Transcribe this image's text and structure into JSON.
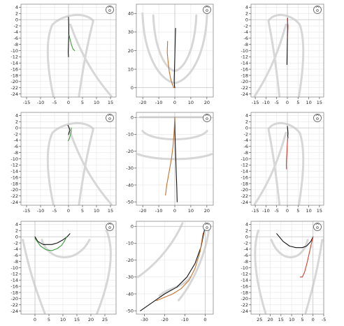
{
  "colors": {
    "black": "#111111",
    "green": "#3e9a3e",
    "red": "#d63b2f",
    "orange": "#c8702a"
  },
  "chart_data": [
    {
      "type": "line",
      "view": "sagittal-right",
      "xlim": [
        -17,
        17
      ],
      "ylim": [
        -25,
        5
      ],
      "xticks": [
        -15,
        -10,
        -5,
        0,
        5,
        10,
        15
      ],
      "yticks": [
        4,
        2,
        0,
        -2,
        -4,
        -6,
        -8,
        -10,
        -12,
        -14,
        -16,
        -18,
        -20,
        -22,
        -24
      ],
      "series": [
        {
          "color": "black",
          "x": [
            0,
            0.1,
            0.1,
            0.0,
            -0.1,
            0.0
          ],
          "y": [
            0.8,
            -2,
            -5,
            -8,
            -10.5,
            -12
          ]
        },
        {
          "color": "green",
          "x": [
            0.2,
            0.6,
            1.0,
            1.6,
            2.2
          ],
          "y": [
            -5,
            -6.5,
            -8,
            -9.5,
            -10
          ]
        }
      ]
    },
    {
      "type": "line",
      "view": "occlusal",
      "xlim": [
        -24,
        24
      ],
      "ylim": [
        -5,
        45
      ],
      "xticks": [
        -20,
        -10,
        0,
        10,
        20
      ],
      "yticks": [
        0,
        10,
        20,
        30,
        40
      ],
      "series": [
        {
          "color": "black",
          "x": [
            0.5,
            0.2,
            0.0,
            -0.2,
            -0.4,
            -0.2,
            0.0
          ],
          "y": [
            32,
            24,
            16,
            9,
            4,
            1,
            0
          ]
        },
        {
          "color": "orange",
          "x": [
            -4.5,
            -4.7,
            -4.2,
            -3.5,
            -2.6,
            -1.6,
            -0.6
          ],
          "y": [
            25,
            19,
            14,
            9,
            5,
            2,
            0
          ]
        }
      ]
    },
    {
      "type": "line",
      "view": "sagittal-left",
      "xlim": [
        -17,
        17
      ],
      "ylim": [
        -25,
        5
      ],
      "xticks": [
        -15,
        -10,
        -5,
        0,
        5,
        10,
        15
      ],
      "yticks": [
        4,
        2,
        0,
        -2,
        -4,
        -6,
        -8,
        -10,
        -12,
        -14,
        -16,
        -18,
        -20,
        -22,
        -24
      ],
      "series": [
        {
          "color": "black",
          "x": [
            0.1,
            0.1,
            0.0,
            -0.1,
            -0.2
          ],
          "y": [
            0.5,
            -3,
            -7,
            -11,
            -14.5
          ]
        },
        {
          "color": "red",
          "x": [
            0.0,
            0.3,
            0.2,
            0.1
          ],
          "y": [
            0.3,
            -2,
            -4,
            -6
          ]
        }
      ]
    },
    {
      "type": "line",
      "view": "sagittal-right",
      "xlim": [
        -17,
        17
      ],
      "ylim": [
        -25,
        5
      ],
      "xticks": [
        -15,
        -10,
        -5,
        0,
        5,
        10,
        15
      ],
      "yticks": [
        4,
        2,
        0,
        -2,
        -4,
        -6,
        -8,
        -10,
        -12,
        -14,
        -16,
        -18,
        -20,
        -22,
        -24
      ],
      "series": [
        {
          "color": "black",
          "x": [
            -0.2,
            0.2,
            0.5,
            0.2,
            0.0
          ],
          "y": [
            0.8,
            0.1,
            -0.8,
            -1.5,
            -2.2
          ]
        },
        {
          "color": "green",
          "x": [
            1.0,
            0.9,
            0.6,
            0.3,
            -0.1
          ],
          "y": [
            0,
            -1.5,
            -2.5,
            -3.5,
            -4.2
          ]
        }
      ]
    },
    {
      "type": "line",
      "view": "frontal",
      "xlim": [
        -24,
        24
      ],
      "ylim": [
        -52,
        3
      ],
      "xticks": [
        -20,
        -10,
        0,
        10,
        20
      ],
      "yticks": [
        0,
        -10,
        -20,
        -30,
        -40,
        -50
      ],
      "series": [
        {
          "color": "black",
          "x": [
            0.0,
            0.1,
            0.3,
            0.6,
            0.9,
            1.2,
            1.5
          ],
          "y": [
            0,
            -8,
            -16,
            -24,
            -33,
            -41,
            -50
          ]
        },
        {
          "color": "orange",
          "x": [
            0.0,
            -0.4,
            -1.0,
            -2.0,
            -3.5,
            -5.0,
            -5.8
          ],
          "y": [
            0,
            -8,
            -16,
            -24,
            -32,
            -40,
            -46
          ]
        }
      ]
    },
    {
      "type": "line",
      "view": "sagittal-left",
      "xlim": [
        -17,
        17
      ],
      "ylim": [
        -25,
        5
      ],
      "xticks": [
        -15,
        -10,
        -5,
        0,
        5,
        10,
        15
      ],
      "yticks": [
        4,
        2,
        0,
        -2,
        -4,
        -6,
        -8,
        -10,
        -12,
        -14,
        -16,
        -18,
        -20,
        -22,
        -24
      ],
      "series": [
        {
          "color": "black",
          "x": [
            0.0,
            0.2,
            0.3,
            0.2,
            0.3
          ],
          "y": [
            0.5,
            -0.8,
            -1.8,
            -2.5,
            -3.2
          ]
        },
        {
          "color": "red",
          "x": [
            0.2,
            0.1,
            -0.1,
            -0.2,
            -0.4,
            -0.5,
            -0.4
          ],
          "y": [
            -3,
            -4,
            -6,
            -8,
            -10,
            -12,
            -13.3
          ]
        }
      ]
    },
    {
      "type": "line",
      "view": "horizontal",
      "xlim": [
        -5,
        29
      ],
      "ylim": [
        -25,
        5
      ],
      "xticks": [
        0,
        5,
        10,
        15,
        20,
        25
      ],
      "yticks": [
        4,
        2,
        0,
        -2,
        -4,
        -6,
        -8,
        -10,
        -12,
        -14,
        -16,
        -18,
        -20,
        -22,
        -24
      ],
      "series": [
        {
          "color": "black",
          "x": [
            0,
            1,
            3,
            6,
            8,
            10,
            11.5,
            12.5
          ],
          "y": [
            0,
            -1.5,
            -2.5,
            -2.5,
            -2.0,
            -1.0,
            0,
            1.0
          ]
        },
        {
          "color": "green",
          "x": [
            0,
            2,
            4,
            6,
            8,
            9.5,
            10.5,
            11.2
          ],
          "y": [
            -0.5,
            -3,
            -4.2,
            -4.5,
            -3.8,
            -2.8,
            -1.5,
            -0.2
          ]
        }
      ]
    },
    {
      "type": "line",
      "view": "sagittal-profile",
      "xlim": [
        -34,
        4
      ],
      "ylim": [
        -52,
        3
      ],
      "xticks": [
        -30,
        -20,
        -10,
        0
      ],
      "yticks": [
        0,
        -10,
        -20,
        -30,
        -40,
        -50
      ],
      "series": [
        {
          "color": "black",
          "x": [
            0,
            -2,
            -5,
            -9,
            -14,
            -20,
            -26,
            -32
          ],
          "y": [
            0,
            -12,
            -22,
            -30,
            -36,
            -40,
            -45,
            -50
          ]
        },
        {
          "color": "orange",
          "x": [
            -1,
            -2.5,
            -5,
            -8,
            -12,
            -16,
            -20,
            -24
          ],
          "y": [
            -4,
            -15,
            -25,
            -32,
            -37,
            -40,
            -42,
            -44
          ]
        }
      ]
    },
    {
      "type": "line",
      "view": "horizontal-mirrored",
      "xlim": [
        29,
        -5
      ],
      "ylim": [
        -25,
        5
      ],
      "xticks": [
        25,
        20,
        15,
        10,
        5,
        0,
        -5
      ],
      "yticks": [
        4,
        2,
        0,
        -2,
        -4,
        -6,
        -8,
        -10,
        -12,
        -14,
        -16,
        -18,
        -20,
        -22,
        -24
      ],
      "series": [
        {
          "color": "black",
          "x": [
            17,
            14,
            11,
            8,
            5,
            3,
            1,
            0
          ],
          "y": [
            1,
            -1.5,
            -3,
            -3.5,
            -3.5,
            -3,
            -1.5,
            0
          ]
        },
        {
          "color": "red",
          "x": [
            0,
            1,
            2,
            3,
            4,
            5,
            6
          ],
          "y": [
            0,
            -3,
            -6,
            -9,
            -11.5,
            -13,
            -13
          ]
        }
      ]
    }
  ]
}
